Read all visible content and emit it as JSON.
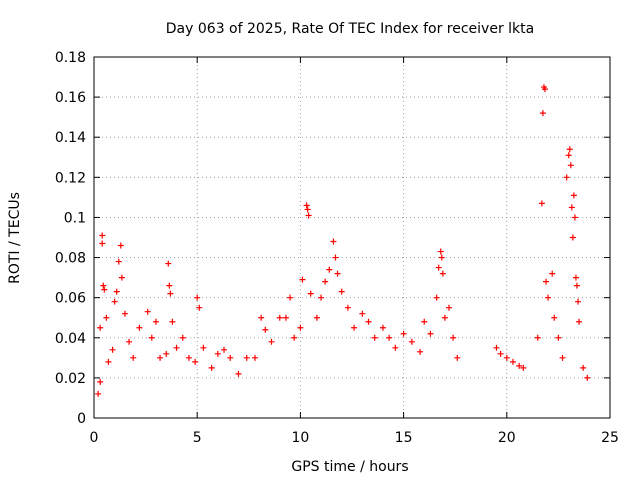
{
  "chart_data": {
    "type": "scatter",
    "title": "Day 063 of 2025, Rate Of TEC Index for receiver lkta",
    "xlabel": "GPS time / hours",
    "ylabel": "ROTI / TECUs",
    "xlim": [
      0,
      25
    ],
    "ylim": [
      0,
      0.18
    ],
    "xticks": [
      "0",
      "5",
      "10",
      "15",
      "20",
      "25"
    ],
    "yticks": [
      "0",
      "0.02",
      "0.04",
      "0.06",
      "0.08",
      "0.1",
      "0.12",
      "0.14",
      "0.16",
      "0.18"
    ],
    "grid": true,
    "marker": "+",
    "color": "#ff0000",
    "series": [
      {
        "points": [
          [
            0.2,
            0.012
          ],
          [
            0.3,
            0.018
          ],
          [
            0.3,
            0.045
          ],
          [
            0.4,
            0.091
          ],
          [
            0.4,
            0.087
          ],
          [
            0.45,
            0.066
          ],
          [
            0.5,
            0.064
          ],
          [
            0.6,
            0.05
          ],
          [
            0.7,
            0.028
          ],
          [
            0.9,
            0.034
          ],
          [
            1.0,
            0.058
          ],
          [
            1.1,
            0.063
          ],
          [
            1.2,
            0.078
          ],
          [
            1.3,
            0.086
          ],
          [
            1.35,
            0.07
          ],
          [
            1.5,
            0.052
          ],
          [
            1.7,
            0.038
          ],
          [
            1.9,
            0.03
          ],
          [
            2.2,
            0.045
          ],
          [
            2.6,
            0.053
          ],
          [
            2.8,
            0.04
          ],
          [
            3.0,
            0.048
          ],
          [
            3.2,
            0.03
          ],
          [
            3.5,
            0.032
          ],
          [
            3.6,
            0.077
          ],
          [
            3.65,
            0.066
          ],
          [
            3.7,
            0.062
          ],
          [
            3.8,
            0.048
          ],
          [
            4.0,
            0.035
          ],
          [
            4.3,
            0.04
          ],
          [
            4.6,
            0.03
          ],
          [
            4.9,
            0.028
          ],
          [
            5.0,
            0.06
          ],
          [
            5.1,
            0.055
          ],
          [
            5.3,
            0.035
          ],
          [
            5.7,
            0.025
          ],
          [
            6.0,
            0.032
          ],
          [
            6.3,
            0.034
          ],
          [
            6.6,
            0.03
          ],
          [
            7.0,
            0.022
          ],
          [
            7.4,
            0.03
          ],
          [
            7.8,
            0.03
          ],
          [
            8.1,
            0.05
          ],
          [
            8.3,
            0.044
          ],
          [
            8.6,
            0.038
          ],
          [
            9.0,
            0.05
          ],
          [
            9.3,
            0.05
          ],
          [
            9.5,
            0.06
          ],
          [
            9.7,
            0.04
          ],
          [
            10.0,
            0.045
          ],
          [
            10.1,
            0.069
          ],
          [
            10.3,
            0.106
          ],
          [
            10.35,
            0.104
          ],
          [
            10.4,
            0.101
          ],
          [
            10.5,
            0.062
          ],
          [
            10.8,
            0.05
          ],
          [
            11.0,
            0.06
          ],
          [
            11.2,
            0.068
          ],
          [
            11.4,
            0.074
          ],
          [
            11.6,
            0.088
          ],
          [
            11.7,
            0.08
          ],
          [
            11.8,
            0.072
          ],
          [
            12.0,
            0.063
          ],
          [
            12.3,
            0.055
          ],
          [
            12.6,
            0.045
          ],
          [
            13.0,
            0.052
          ],
          [
            13.3,
            0.048
          ],
          [
            13.6,
            0.04
          ],
          [
            14.0,
            0.045
          ],
          [
            14.3,
            0.04
          ],
          [
            14.6,
            0.035
          ],
          [
            15.0,
            0.042
          ],
          [
            15.4,
            0.038
          ],
          [
            15.8,
            0.033
          ],
          [
            16.0,
            0.048
          ],
          [
            16.3,
            0.042
          ],
          [
            16.6,
            0.06
          ],
          [
            16.7,
            0.075
          ],
          [
            16.8,
            0.083
          ],
          [
            16.85,
            0.08
          ],
          [
            16.9,
            0.072
          ],
          [
            17.0,
            0.05
          ],
          [
            17.2,
            0.055
          ],
          [
            17.4,
            0.04
          ],
          [
            17.6,
            0.03
          ],
          [
            19.5,
            0.035
          ],
          [
            19.7,
            0.032
          ],
          [
            20.0,
            0.03
          ],
          [
            20.3,
            0.028
          ],
          [
            20.6,
            0.026
          ],
          [
            20.8,
            0.025
          ],
          [
            21.5,
            0.04
          ],
          [
            21.7,
            0.107
          ],
          [
            21.75,
            0.152
          ],
          [
            21.8,
            0.165
          ],
          [
            21.85,
            0.164
          ],
          [
            21.9,
            0.068
          ],
          [
            22.0,
            0.06
          ],
          [
            22.2,
            0.072
          ],
          [
            22.3,
            0.05
          ],
          [
            22.5,
            0.04
          ],
          [
            22.7,
            0.03
          ],
          [
            22.9,
            0.12
          ],
          [
            23.0,
            0.131
          ],
          [
            23.05,
            0.134
          ],
          [
            23.1,
            0.126
          ],
          [
            23.15,
            0.105
          ],
          [
            23.2,
            0.09
          ],
          [
            23.25,
            0.111
          ],
          [
            23.3,
            0.1
          ],
          [
            23.35,
            0.07
          ],
          [
            23.4,
            0.066
          ],
          [
            23.45,
            0.058
          ],
          [
            23.5,
            0.048
          ],
          [
            23.7,
            0.025
          ],
          [
            23.9,
            0.02
          ]
        ]
      }
    ]
  }
}
